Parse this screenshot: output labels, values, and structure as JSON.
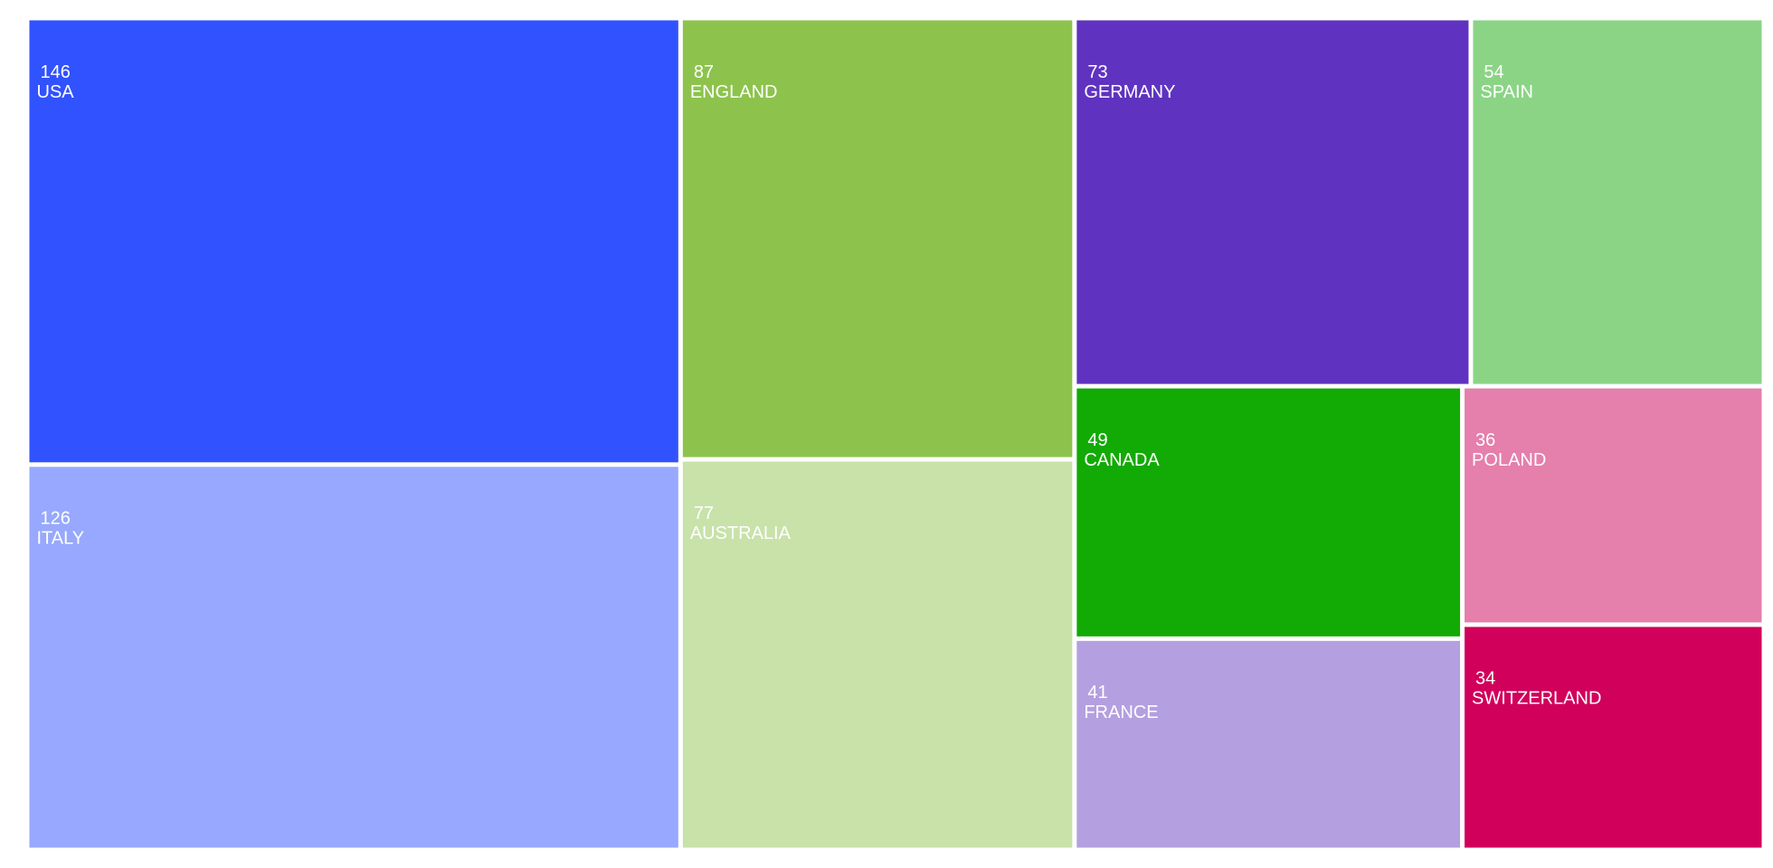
{
  "chart_data": {
    "type": "treemap",
    "categories": [
      "USA",
      "ITALY",
      "ENGLAND",
      "AUSTRALIA",
      "GERMANY",
      "SPAIN",
      "CANADA",
      "FRANCE",
      "POLAND",
      "SWITZERLAND"
    ],
    "values": [
      146,
      126,
      87,
      77,
      73,
      54,
      49,
      41,
      36,
      34
    ],
    "colors": [
      "#3152ff",
      "#97a8fe",
      "#8dc34d",
      "#c8e2a9",
      "#5f33c0",
      "#8bd486",
      "#12aa05",
      "#b49fe0",
      "#e57fac",
      "#d1005b"
    ]
  }
}
